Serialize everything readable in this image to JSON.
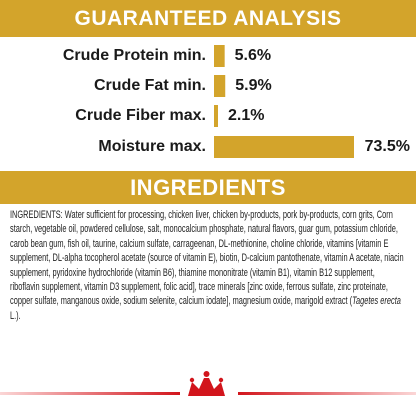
{
  "analysis": {
    "title": "GUARANTEED ANALYSIS",
    "labels": [
      "Crude Protein min.",
      "Crude Fat min.",
      "Crude Fiber max.",
      "Moisture max."
    ],
    "values": [
      5.6,
      5.9,
      2.1,
      73.5
    ],
    "value_labels": [
      "5.6%",
      "5.9%",
      "2.1%",
      "73.5%"
    ]
  },
  "ingredients": {
    "title": "INGREDIENTS",
    "text": "INGREDIENTS: Water sufficient for processing, chicken liver, chicken by-products, pork by-products, corn grits, Corn starch, vegetable oil, powdered cellulose, salt, monocalcium phosphate, natural flavors, guar gum, potassium chloride, carob bean gum, fish oil, taurine, calcium sulfate, carrageenan, DL-methionine, choline chloride, vitamins [vitamin E supplement, DL-alpha tocopherol acetate (source of vitamin E), biotin, D-calcium pantothenate, vitamin A acetate, niacin supplement, pyridoxine hydrochloride (vitamin B6), thiamine mononitrate (vitamin B1), vitamin B12 supplement, riboflavin supplement, vitamin D3 supplement, folic acid], trace minerals [zinc oxide, ferrous sulfate, zinc proteinate, copper sulfate, manganous oxide, sodium selenite, calcium iodate], magnesium oxide, marigold extract (",
    "text_italic": "Tagetes erecta",
    "text_end": " L.)."
  }
}
